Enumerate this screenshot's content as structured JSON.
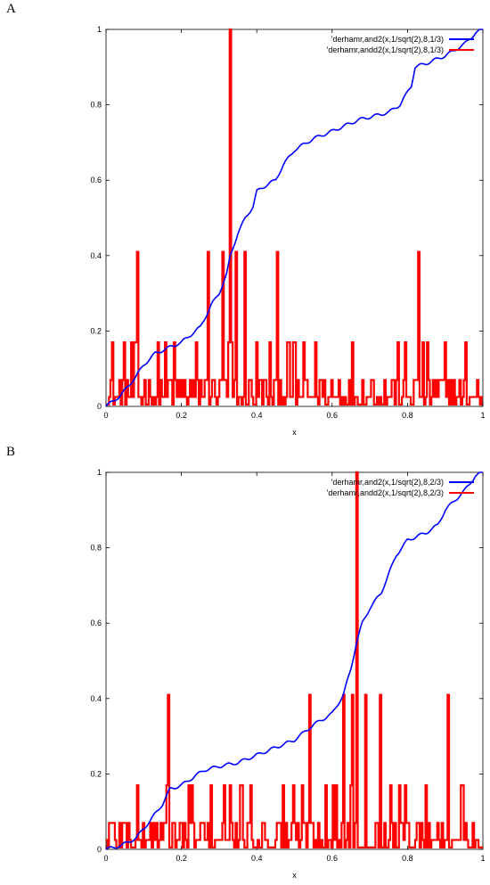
{
  "panels": [
    {
      "letter": "A",
      "chart_data": {
        "type": "line",
        "title": "",
        "xlabel": "x",
        "ylabel": "",
        "xlim": [
          0,
          1
        ],
        "ylim": [
          0,
          1
        ],
        "x_ticks": [
          "0",
          "0.2",
          "0.4",
          "0.6",
          "0.8",
          "1"
        ],
        "y_ticks": [
          "0",
          "0.2",
          "0.4",
          "0.6",
          "0.8",
          "1"
        ],
        "legend_position": "top-right",
        "series": [
          {
            "name": "'derhamr,and2(x,1/sqrt(2),8,1/3)",
            "color": "#0000ff",
            "kind": "cdf",
            "points": [
              [
                0,
                0
              ],
              [
                0.04,
                0.03
              ],
              [
                0.08,
                0.08
              ],
              [
                0.1,
                0.11
              ],
              [
                0.13,
                0.14
              ],
              [
                0.2,
                0.17
              ],
              [
                0.25,
                0.21
              ],
              [
                0.28,
                0.27
              ],
              [
                0.3,
                0.3
              ],
              [
                0.32,
                0.35
              ],
              [
                0.33,
                0.4
              ],
              [
                0.35,
                0.46
              ],
              [
                0.37,
                0.5
              ],
              [
                0.39,
                0.53
              ],
              [
                0.4,
                0.57
              ],
              [
                0.43,
                0.59
              ],
              [
                0.45,
                0.6
              ],
              [
                0.47,
                0.64
              ],
              [
                0.5,
                0.68
              ],
              [
                0.55,
                0.71
              ],
              [
                0.6,
                0.73
              ],
              [
                0.67,
                0.76
              ],
              [
                0.75,
                0.78
              ],
              [
                0.78,
                0.8
              ],
              [
                0.81,
                0.85
              ],
              [
                0.82,
                0.9
              ],
              [
                0.85,
                0.91
              ],
              [
                0.9,
                0.93
              ],
              [
                0.95,
                0.96
              ],
              [
                0.98,
                0.99
              ],
              [
                1,
                1
              ]
            ]
          },
          {
            "name": "'derhamr,andd2(x,1/sqrt(2),8,1/3)",
            "color": "#ff0000",
            "kind": "step-density",
            "bins": 256,
            "peak": 0.333,
            "peak_value": 1.0,
            "spikes": [
              [
                0.083,
                0.41
              ],
              [
                0.27,
                0.41
              ],
              [
                0.31,
                0.41
              ],
              [
                0.33,
                1.0
              ],
              [
                0.345,
                0.41
              ],
              [
                0.37,
                0.41
              ],
              [
                0.455,
                0.41
              ],
              [
                0.83,
                0.41
              ]
            ]
          }
        ]
      }
    },
    {
      "letter": "B",
      "chart_data": {
        "type": "line",
        "title": "",
        "xlabel": "x",
        "ylabel": "",
        "xlim": [
          0,
          1
        ],
        "ylim": [
          0,
          1
        ],
        "x_ticks": [
          "0",
          "0.2",
          "0.4",
          "0.6",
          "0.8",
          "1"
        ],
        "y_ticks": [
          "0",
          "0.2",
          "0.4",
          "0.6",
          "0.8",
          "1"
        ],
        "legend_position": "top-right",
        "series": [
          {
            "name": "'derhamr,and2(x,1/sqrt(2),8,2/3)",
            "color": "#0000ff",
            "kind": "cdf",
            "points": [
              [
                0,
                0
              ],
              [
                0.04,
                0.01
              ],
              [
                0.08,
                0.03
              ],
              [
                0.12,
                0.08
              ],
              [
                0.15,
                0.12
              ],
              [
                0.17,
                0.16
              ],
              [
                0.2,
                0.17
              ],
              [
                0.23,
                0.19
              ],
              [
                0.26,
                0.21
              ],
              [
                0.3,
                0.22
              ],
              [
                0.35,
                0.23
              ],
              [
                0.4,
                0.25
              ],
              [
                0.45,
                0.27
              ],
              [
                0.5,
                0.29
              ],
              [
                0.55,
                0.33
              ],
              [
                0.6,
                0.36
              ],
              [
                0.63,
                0.41
              ],
              [
                0.65,
                0.48
              ],
              [
                0.665,
                0.55
              ],
              [
                0.68,
                0.6
              ],
              [
                0.7,
                0.64
              ],
              [
                0.73,
                0.68
              ],
              [
                0.75,
                0.73
              ],
              [
                0.77,
                0.78
              ],
              [
                0.8,
                0.82
              ],
              [
                0.85,
                0.84
              ],
              [
                0.88,
                0.86
              ],
              [
                0.9,
                0.9
              ],
              [
                0.93,
                0.93
              ],
              [
                0.95,
                0.95
              ],
              [
                0.98,
                0.99
              ],
              [
                1,
                1
              ]
            ]
          },
          {
            "name": "'derhamr,andd2(x,1/sqrt(2),8,2/3)",
            "color": "#ff0000",
            "kind": "step-density",
            "bins": 256,
            "peak": 0.667,
            "peak_value": 1.0,
            "spikes": [
              [
                0.165,
                0.41
              ],
              [
                0.54,
                0.41
              ],
              [
                0.63,
                0.41
              ],
              [
                0.655,
                0.41
              ],
              [
                0.667,
                1.0
              ],
              [
                0.69,
                0.41
              ],
              [
                0.73,
                0.41
              ],
              [
                0.91,
                0.41
              ]
            ]
          }
        ]
      }
    }
  ]
}
